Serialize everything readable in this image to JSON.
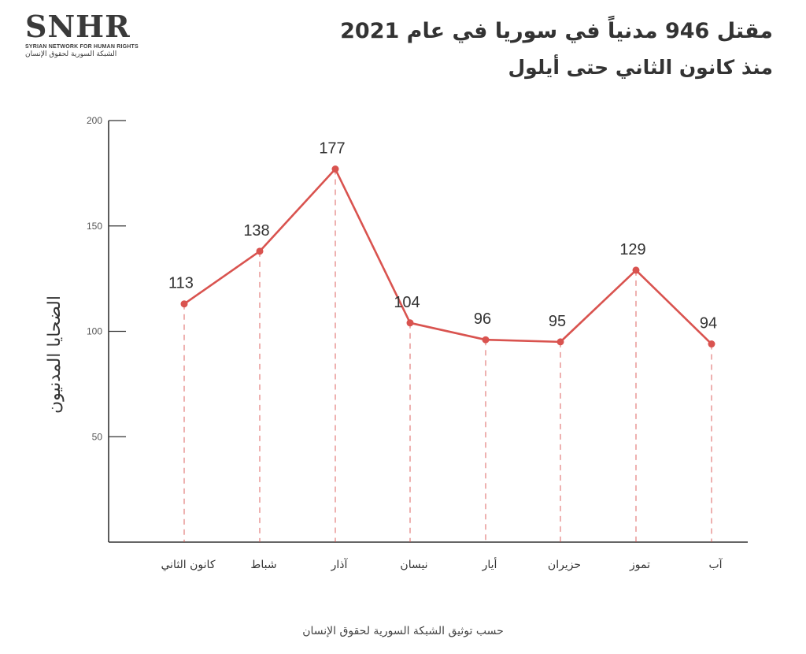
{
  "logo": {
    "name": "SNHR",
    "english": "SYRIAN NETWORK FOR HUMAN RIGHTS",
    "arabic": "الشبكة السورية لحقوق الإنسان"
  },
  "title": "مقتل 946 مدنياً في سوريا في عام 2021",
  "subtitle": "منذ كانون الثاني حتى أيلول",
  "source": "حسب توثيق الشبكة السورية لحقوق الإنسان",
  "colors": {
    "line": "#d9534f",
    "axis": "#333333",
    "text": "#333333"
  },
  "chart_data": {
    "type": "line",
    "categories": [
      "كانون الثاني",
      "شباط",
      "آذار",
      "نيسان",
      "أيار",
      "حزيران",
      "تموز",
      "آب"
    ],
    "values": [
      113,
      138,
      177,
      104,
      96,
      95,
      129,
      94
    ],
    "ylabel": "الضحايا المدنيون",
    "yticks": [
      50,
      100,
      150,
      200
    ],
    "ylim": [
      0,
      200
    ],
    "grid": false,
    "legend": "none"
  }
}
